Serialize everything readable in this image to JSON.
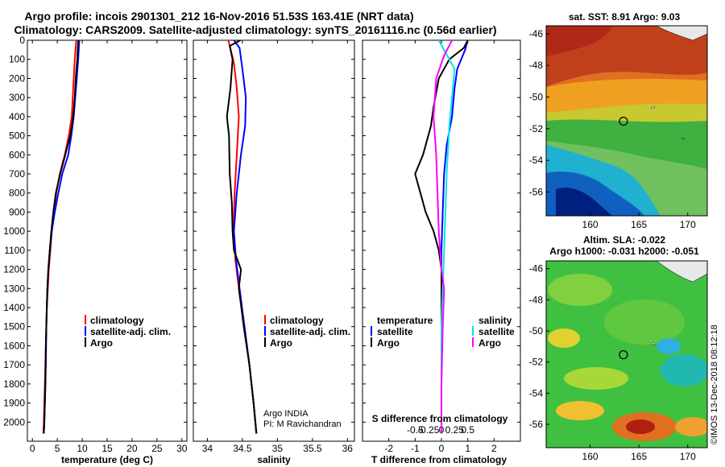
{
  "title_line1": "Argo profile: incois 2901301_212 16-Nov-2016 51.53S 163.41E (NRT data)",
  "title_line2": "Climatology: CARS2009. Satellite-adjusted climatology: synTS_20161116.nc (0.56d earlier)",
  "credit": "©IMOS 13-Dec-2018 08:12:18",
  "colors": {
    "climatology": "#ff0000",
    "satellite": "#0000ff",
    "argo": "#000000",
    "sal_sat": "#00e5e5",
    "sal_argo": "#ff00ff"
  },
  "chart_data": [
    {
      "type": "line",
      "id": "temperature",
      "xlabel": "temperature (deg C)",
      "ylabel": "",
      "xlim": [
        -1,
        31
      ],
      "ylim": [
        2100,
        0
      ],
      "xticks": [
        0,
        5,
        10,
        15,
        20,
        25,
        30
      ],
      "yticks": [
        0,
        100,
        200,
        300,
        400,
        500,
        600,
        700,
        800,
        900,
        1000,
        1100,
        1200,
        1300,
        1400,
        1500,
        1600,
        1700,
        1800,
        1900,
        2000
      ],
      "legend": [
        "climatology",
        "satellite-adj. clim.",
        "Argo"
      ],
      "series": [
        {
          "name": "climatology",
          "color": "#ff0000",
          "points": [
            [
              8.8,
              0
            ],
            [
              8.5,
              100
            ],
            [
              8.3,
              200
            ],
            [
              8.1,
              300
            ],
            [
              7.9,
              400
            ],
            [
              7.3,
              500
            ],
            [
              6.5,
              600
            ],
            [
              5.5,
              700
            ],
            [
              4.8,
              800
            ],
            [
              4.3,
              900
            ],
            [
              3.9,
              1000
            ],
            [
              3.6,
              1100
            ],
            [
              3.3,
              1200
            ],
            [
              3.1,
              1300
            ],
            [
              2.9,
              1400
            ],
            [
              2.8,
              1500
            ],
            [
              2.7,
              1600
            ],
            [
              2.6,
              1700
            ],
            [
              2.5,
              1800
            ],
            [
              2.4,
              1900
            ],
            [
              2.3,
              2000
            ],
            [
              2.2,
              2060
            ]
          ]
        },
        {
          "name": "satellite-adj. clim.",
          "color": "#0000ff",
          "points": [
            [
              9.4,
              0
            ],
            [
              9.2,
              100
            ],
            [
              8.9,
              200
            ],
            [
              8.6,
              300
            ],
            [
              8.3,
              400
            ],
            [
              7.8,
              500
            ],
            [
              7.2,
              600
            ],
            [
              6.0,
              700
            ],
            [
              5.2,
              800
            ],
            [
              4.5,
              900
            ],
            [
              3.9,
              1000
            ],
            [
              3.5,
              1100
            ],
            [
              3.2,
              1200
            ],
            [
              3.0,
              1300
            ],
            [
              2.9,
              1400
            ],
            [
              2.8,
              1500
            ],
            [
              2.75,
              1600
            ],
            [
              2.7,
              1700
            ],
            [
              2.6,
              1800
            ],
            [
              2.5,
              1900
            ],
            [
              2.4,
              2000
            ],
            [
              2.3,
              2060
            ]
          ]
        },
        {
          "name": "Argo",
          "color": "#000000",
          "points": [
            [
              9.2,
              0
            ],
            [
              9.0,
              100
            ],
            [
              8.7,
              200
            ],
            [
              8.5,
              300
            ],
            [
              8.2,
              400
            ],
            [
              7.6,
              500
            ],
            [
              6.6,
              600
            ],
            [
              5.6,
              700
            ],
            [
              4.7,
              800
            ],
            [
              4.2,
              900
            ],
            [
              3.8,
              1000
            ],
            [
              3.5,
              1100
            ],
            [
              3.2,
              1200
            ],
            [
              3.0,
              1300
            ],
            [
              2.9,
              1400
            ],
            [
              2.8,
              1500
            ],
            [
              2.7,
              1600
            ],
            [
              2.65,
              1700
            ],
            [
              2.6,
              1800
            ],
            [
              2.5,
              1900
            ],
            [
              2.4,
              2000
            ],
            [
              2.3,
              2060
            ]
          ]
        }
      ]
    },
    {
      "type": "line",
      "id": "salinity",
      "xlabel": "salinity",
      "ylabel": "",
      "xlim": [
        33.8,
        36.1
      ],
      "ylim": [
        2100,
        0
      ],
      "xticks": [
        34,
        34.5,
        35,
        35.5,
        36
      ],
      "legend": [
        "climatology",
        "satellite-adj. clim.",
        "Argo"
      ],
      "annotation": [
        "Argo INDIA",
        "PI: M Ravichandran"
      ],
      "series": [
        {
          "name": "climatology",
          "color": "#ff0000",
          "points": [
            [
              34.3,
              0
            ],
            [
              34.34,
              60
            ],
            [
              34.38,
              120
            ],
            [
              34.42,
              250
            ],
            [
              34.45,
              400
            ],
            [
              34.42,
              600
            ],
            [
              34.39,
              800
            ],
            [
              34.37,
              1000
            ],
            [
              34.4,
              1150
            ],
            [
              34.45,
              1300
            ],
            [
              34.53,
              1500
            ],
            [
              34.6,
              1700
            ],
            [
              34.66,
              1900
            ],
            [
              34.7,
              2060
            ]
          ]
        },
        {
          "name": "satellite-adj. clim.",
          "color": "#0000ff",
          "points": [
            [
              34.38,
              0
            ],
            [
              34.46,
              40
            ],
            [
              34.5,
              150
            ],
            [
              34.55,
              300
            ],
            [
              34.54,
              450
            ],
            [
              34.48,
              600
            ],
            [
              34.42,
              800
            ],
            [
              34.38,
              1000
            ],
            [
              34.41,
              1150
            ],
            [
              34.46,
              1300
            ],
            [
              34.53,
              1500
            ],
            [
              34.6,
              1700
            ],
            [
              34.66,
              1900
            ],
            [
              34.7,
              2060
            ]
          ]
        },
        {
          "name": "Argo",
          "color": "#000000",
          "points": [
            [
              34.47,
              0
            ],
            [
              34.32,
              30
            ],
            [
              34.36,
              100
            ],
            [
              34.33,
              250
            ],
            [
              34.28,
              400
            ],
            [
              34.31,
              500
            ],
            [
              34.32,
              700
            ],
            [
              34.35,
              850
            ],
            [
              34.36,
              1000
            ],
            [
              34.38,
              1100
            ],
            [
              34.48,
              1200
            ],
            [
              34.45,
              1300
            ],
            [
              34.52,
              1500
            ],
            [
              34.6,
              1700
            ],
            [
              34.66,
              1900
            ],
            [
              34.7,
              2060
            ]
          ]
        }
      ]
    },
    {
      "type": "line",
      "id": "difference",
      "xlabel": "T difference from climatology",
      "xlabel2": "S difference from climatology",
      "xlim": [
        -3,
        3
      ],
      "ylim": [
        2100,
        0
      ],
      "xticks": [
        -2,
        -1,
        0,
        1,
        2
      ],
      "xticks2": [
        "-0.5",
        "-0.25",
        "0",
        "0.25",
        "0.5"
      ],
      "legend_t": {
        "heading": "temperature",
        "items": [
          "satellite",
          "Argo"
        ]
      },
      "legend_s": {
        "heading": "salinity",
        "items": [
          "satellite",
          "Argo"
        ]
      },
      "series": [
        {
          "name": "temperature satellite",
          "color": "#0000ff",
          "points": [
            [
              1.0,
              0
            ],
            [
              0.9,
              50
            ],
            [
              0.6,
              150
            ],
            [
              0.5,
              250
            ],
            [
              0.4,
              400
            ],
            [
              0.2,
              550
            ],
            [
              0.1,
              700
            ],
            [
              0.05,
              900
            ],
            [
              0.0,
              1100
            ],
            [
              0.0,
              1300
            ],
            [
              0.0,
              1600
            ],
            [
              0.0,
              2060
            ]
          ]
        },
        {
          "name": "temperature Argo",
          "color": "#000000",
          "points": [
            [
              1.0,
              0
            ],
            [
              0.85,
              40
            ],
            [
              0.3,
              100
            ],
            [
              -0.1,
              200
            ],
            [
              -0.3,
              350
            ],
            [
              -0.4,
              450
            ],
            [
              -0.7,
              600
            ],
            [
              -1.0,
              700
            ],
            [
              -0.8,
              800
            ],
            [
              -0.6,
              900
            ],
            [
              -0.3,
              1000
            ],
            [
              -0.1,
              1100
            ],
            [
              0.0,
              1200
            ],
            [
              0.0,
              1300
            ],
            [
              0.0,
              1500
            ],
            [
              0.0,
              1800
            ],
            [
              0.0,
              2060
            ]
          ]
        },
        {
          "name": "salinity satellite",
          "color": "#00e5e5",
          "points": [
            [
              -0.1,
              0
            ],
            [
              0.1,
              50
            ],
            [
              0.5,
              150
            ],
            [
              0.4,
              300
            ],
            [
              0.3,
              450
            ],
            [
              0.2,
              700
            ],
            [
              0.15,
              900
            ],
            [
              0.1,
              1100
            ],
            [
              0.05,
              1300
            ],
            [
              0.0,
              1500
            ],
            [
              0.0,
              2060
            ]
          ]
        },
        {
          "name": "salinity Argo",
          "color": "#ff00ff",
          "points": [
            [
              0.4,
              0
            ],
            [
              0.1,
              80
            ],
            [
              -0.2,
              200
            ],
            [
              -0.3,
              400
            ],
            [
              -0.2,
              600
            ],
            [
              -0.15,
              800
            ],
            [
              -0.1,
              1000
            ],
            [
              0.0,
              1200
            ],
            [
              0.1,
              1300
            ],
            [
              0.05,
              1500
            ],
            [
              0.0,
              1800
            ],
            [
              0.0,
              2060
            ]
          ]
        }
      ]
    }
  ],
  "map_sst": {
    "title": "sat. SST: 8.91 Argo: 9.03",
    "xticks": [
      160,
      165,
      170
    ],
    "yticks": [
      -46,
      -48,
      -50,
      -52,
      -54,
      -56
    ],
    "xlim": [
      155.5,
      172
    ],
    "ylim": [
      -57.5,
      -45.5
    ],
    "marker": [
      163.41,
      -51.53
    ]
  },
  "map_sla": {
    "title_line1": "Altim. SLA: -0.022",
    "title_line2": "Argo h1000: -0.031 h2000: -0.051",
    "xticks": [
      160,
      165,
      170
    ],
    "yticks": [
      -46,
      -48,
      -50,
      -52,
      -54,
      -56
    ],
    "xlim": [
      155.5,
      172
    ],
    "ylim": [
      -57.5,
      -45.5
    ],
    "marker": [
      163.41,
      -51.53
    ]
  }
}
